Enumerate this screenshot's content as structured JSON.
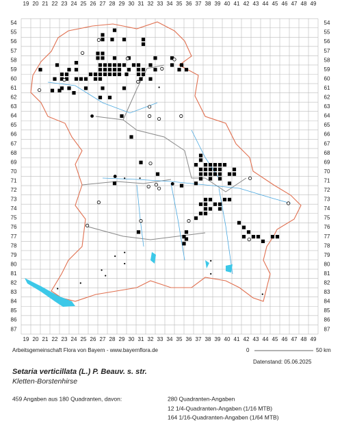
{
  "map": {
    "columns": [
      19,
      20,
      21,
      22,
      23,
      24,
      25,
      26,
      27,
      28,
      29,
      30,
      31,
      32,
      33,
      34,
      35,
      36,
      37,
      38,
      39,
      40,
      41,
      42,
      43,
      44,
      45,
      46,
      47,
      48,
      49
    ],
    "rows": [
      54,
      55,
      56,
      57,
      58,
      59,
      60,
      61,
      62,
      63,
      64,
      65,
      66,
      67,
      68,
      69,
      70,
      71,
      72,
      73,
      74,
      75,
      76,
      77,
      78,
      79,
      80,
      81,
      82,
      83,
      84,
      85,
      86,
      87
    ],
    "squares": [
      [
        28.25,
        54.75
      ],
      [
        27,
        55.25
      ],
      [
        27,
        55.75
      ],
      [
        28,
        55.75
      ],
      [
        29.25,
        55.75
      ],
      [
        31.25,
        55.75
      ],
      [
        31.25,
        56.25
      ],
      [
        26.5,
        57.25
      ],
      [
        27,
        57.25
      ],
      [
        26.5,
        57.75
      ],
      [
        27,
        57.75
      ],
      [
        28.25,
        57.75
      ],
      [
        29.75,
        57.75
      ],
      [
        32.5,
        57.75
      ],
      [
        34.25,
        57.75
      ],
      [
        22.25,
        58.5
      ],
      [
        24.25,
        58.25
      ],
      [
        26.75,
        58.5
      ],
      [
        27.25,
        58.5
      ],
      [
        27.75,
        58.5
      ],
      [
        28.25,
        58.5
      ],
      [
        28.75,
        58.5
      ],
      [
        29.25,
        58.5
      ],
      [
        30.25,
        58.5
      ],
      [
        30.75,
        58.5
      ],
      [
        32,
        58.5
      ],
      [
        34.25,
        58.5
      ],
      [
        35.25,
        58.5
      ],
      [
        20.5,
        59
      ],
      [
        23.5,
        59
      ],
      [
        24.25,
        59
      ],
      [
        26.75,
        59
      ],
      [
        27.25,
        59
      ],
      [
        27.75,
        59
      ],
      [
        28.25,
        59
      ],
      [
        28.75,
        59
      ],
      [
        29.75,
        59
      ],
      [
        30.75,
        59
      ],
      [
        31.25,
        59
      ],
      [
        32.5,
        59
      ],
      [
        35,
        59
      ],
      [
        35.75,
        59
      ],
      [
        22.75,
        59.5
      ],
      [
        23.25,
        59.5
      ],
      [
        25.75,
        59.5
      ],
      [
        26.25,
        59.5
      ],
      [
        26.75,
        59.5
      ],
      [
        27.25,
        59.5
      ],
      [
        27.75,
        59.5
      ],
      [
        28.25,
        59.5
      ],
      [
        28.75,
        59.5
      ],
      [
        29.5,
        59.5
      ],
      [
        30.75,
        59.5
      ],
      [
        31.25,
        59.5
      ],
      [
        22,
        60
      ],
      [
        22.75,
        60
      ],
      [
        23.25,
        60
      ],
      [
        24.25,
        60
      ],
      [
        24.75,
        60
      ],
      [
        25.25,
        60
      ],
      [
        26.25,
        60
      ],
      [
        26.75,
        60
      ],
      [
        31,
        60
      ],
      [
        32,
        60
      ],
      [
        22.75,
        61
      ],
      [
        23.5,
        61
      ],
      [
        25.25,
        61
      ],
      [
        27,
        61
      ],
      [
        29.25,
        61
      ],
      [
        21.75,
        61.25
      ],
      [
        22.5,
        61.25
      ],
      [
        24,
        61.5
      ],
      [
        26.75,
        62
      ],
      [
        27.75,
        62
      ],
      [
        29,
        64
      ],
      [
        30,
        66.25
      ],
      [
        31,
        69
      ],
      [
        37.25,
        68.25
      ],
      [
        37.25,
        68.75
      ],
      [
        36.75,
        69.25
      ],
      [
        37.75,
        69.25
      ],
      [
        38.25,
        69.25
      ],
      [
        38.75,
        69.25
      ],
      [
        39.25,
        69.25
      ],
      [
        39.75,
        69.25
      ],
      [
        37.25,
        69.75
      ],
      [
        37.75,
        69.75
      ],
      [
        38.25,
        69.75
      ],
      [
        38.75,
        69.75
      ],
      [
        39.25,
        69.75
      ],
      [
        40.75,
        69.75
      ],
      [
        37.25,
        70.25
      ],
      [
        37.75,
        70.25
      ],
      [
        38.25,
        70.25
      ],
      [
        38.75,
        70.25
      ],
      [
        39.25,
        70.25
      ],
      [
        40.25,
        70.25
      ],
      [
        40.75,
        70.25
      ],
      [
        37.25,
        70.75
      ],
      [
        38.25,
        70.75
      ],
      [
        39.25,
        70.75
      ],
      [
        32.75,
        70.25
      ],
      [
        28.25,
        71.25
      ],
      [
        35.25,
        71.5
      ],
      [
        36.75,
        71.25
      ],
      [
        40.25,
        71.25
      ],
      [
        37.75,
        73
      ],
      [
        38.25,
        73
      ],
      [
        37.25,
        73.5
      ],
      [
        37.75,
        73.5
      ],
      [
        38.75,
        73.5
      ],
      [
        39.25,
        73.5
      ],
      [
        40.25,
        73
      ],
      [
        39.75,
        73
      ],
      [
        37.75,
        74
      ],
      [
        38.25,
        74
      ],
      [
        39.25,
        74
      ],
      [
        37.25,
        74.5
      ],
      [
        37.75,
        74.5
      ],
      [
        36.75,
        75
      ],
      [
        41.25,
        75.5
      ],
      [
        41.75,
        76
      ],
      [
        42.25,
        76.5
      ],
      [
        41.75,
        77
      ],
      [
        42.75,
        77
      ],
      [
        43.25,
        77
      ],
      [
        43.75,
        77.5
      ],
      [
        44.75,
        77
      ],
      [
        45.25,
        77
      ],
      [
        35.75,
        76.5
      ],
      [
        35.5,
        77
      ],
      [
        35.75,
        77.25
      ],
      [
        35.5,
        77.75
      ],
      [
        30.75,
        76.5
      ]
    ],
    "circles": [
      [
        24.9,
        57.2
      ],
      [
        26.6,
        55.8
      ],
      [
        29.6,
        57.8
      ],
      [
        30.7,
        60.3
      ],
      [
        31.9,
        63
      ],
      [
        31.9,
        64
      ],
      [
        32.9,
        64.3
      ],
      [
        32,
        69.1
      ],
      [
        35.2,
        64
      ],
      [
        32.6,
        71.4
      ],
      [
        32.9,
        71.8
      ],
      [
        31.8,
        71.6
      ],
      [
        26.6,
        73.3
      ],
      [
        31,
        75.3
      ],
      [
        25.4,
        75.8
      ],
      [
        36,
        75.3
      ],
      [
        42.4,
        70.7
      ],
      [
        42.3,
        77.3
      ],
      [
        46.4,
        73.4
      ],
      [
        33.2,
        58.9
      ],
      [
        23,
        60.1
      ],
      [
        34.5,
        57.9
      ],
      [
        20.4,
        61.2
      ]
    ],
    "dots": [
      [
        30.9,
        70.7
      ],
      [
        29.3,
        70.7
      ],
      [
        32.9,
        60.9
      ],
      [
        28.3,
        79.1
      ],
      [
        29.3,
        78.7
      ],
      [
        29.3,
        79.9
      ],
      [
        27.3,
        81.2
      ],
      [
        38.3,
        79.6
      ],
      [
        38.3,
        81
      ],
      [
        22.3,
        82.6
      ],
      [
        43.7,
        83.2
      ],
      [
        24.7,
        82
      ],
      [
        26.9,
        80.6
      ]
    ],
    "filled_circles": [
      [
        34.3,
        71.3
      ],
      [
        25.9,
        64
      ],
      [
        28.3,
        70.5
      ]
    ]
  },
  "footer": {
    "credit": "Arbeitsgemeinschaft Flora von Bayern - www.bayernflora.de",
    "scale_start": "0",
    "scale_end": "50 km",
    "date": "Datenstand: 05.06.2025"
  },
  "species": {
    "name": "Setaria verticillata (L.) P. Beauv. s. str.",
    "common_name": "Kletten-Borstenhirse"
  },
  "stats": {
    "summary": "459 Angaben aus 180 Quadranten, davon:",
    "lines": [
      "280 Quadranten-Angaben",
      "12 1/4-Quadranten-Angaben (1/16 MTB)",
      "164 1/16-Quadranten-Angaben (1/64 MTB)"
    ]
  }
}
